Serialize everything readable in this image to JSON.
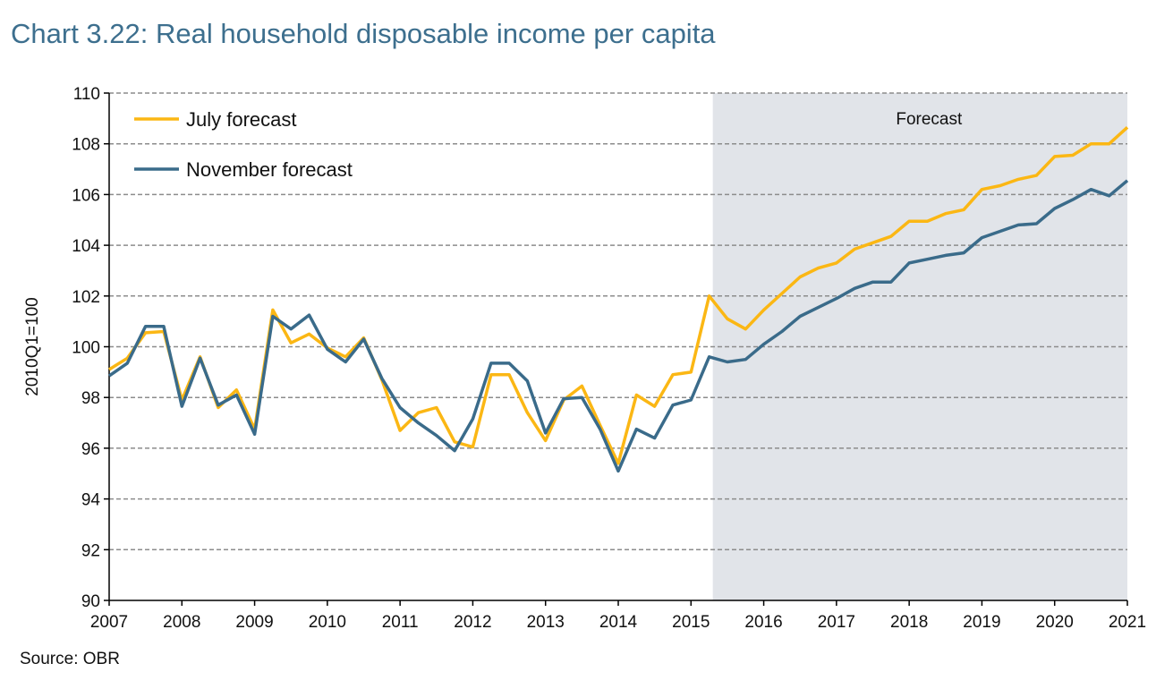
{
  "chart_data": {
    "type": "line",
    "title": "Chart 3.22: Real household disposable income per capita",
    "ylabel": "2010Q1=100",
    "xlabel": "",
    "ylim": [
      90,
      110
    ],
    "yticks": [
      90,
      92,
      94,
      96,
      98,
      100,
      102,
      104,
      106,
      108,
      110
    ],
    "xlim": [
      2007,
      2021
    ],
    "xticks": [
      "2007",
      "2008",
      "2009",
      "2010",
      "2011",
      "2012",
      "2013",
      "2014",
      "2015",
      "2016",
      "2017",
      "2018",
      "2019",
      "2020",
      "2021"
    ],
    "x_start": 2007,
    "x_step": 0.25,
    "grid": true,
    "legend_position": "top-left",
    "forecast_region": {
      "label": "Forecast",
      "start": 2015.3,
      "end": 2021,
      "color": "#e1e4e9"
    },
    "series": [
      {
        "name": "July forecast",
        "color": "#fbb714",
        "values": [
          99.1,
          99.55,
          100.55,
          100.6,
          97.9,
          99.6,
          97.6,
          98.3,
          96.75,
          101.45,
          100.15,
          100.5,
          99.95,
          99.6,
          100.35,
          98.7,
          96.7,
          97.4,
          97.6,
          96.25,
          96.05,
          98.9,
          98.9,
          97.4,
          96.3,
          97.9,
          98.45,
          96.9,
          95.4,
          98.1,
          97.65,
          98.9,
          99.0,
          102.0,
          101.1,
          100.7,
          101.45,
          102.1,
          102.75,
          103.1,
          103.3,
          103.85,
          104.1,
          104.35,
          104.95,
          104.95,
          105.25,
          105.4,
          106.2,
          106.35,
          106.6,
          106.75,
          107.5,
          107.55,
          108.0,
          108.0,
          108.65
        ]
      },
      {
        "name": "November forecast",
        "color": "#3a6b8a",
        "values": [
          98.85,
          99.35,
          100.8,
          100.8,
          97.65,
          99.55,
          97.7,
          98.1,
          96.55,
          101.2,
          100.7,
          101.25,
          99.9,
          99.4,
          100.3,
          98.75,
          97.6,
          97.0,
          96.5,
          95.9,
          97.15,
          99.35,
          99.35,
          98.65,
          96.6,
          97.95,
          98.0,
          96.75,
          95.1,
          96.75,
          96.4,
          97.7,
          97.9,
          99.6,
          99.4,
          99.5,
          100.1,
          100.6,
          101.2,
          101.55,
          101.9,
          102.3,
          102.55,
          102.55,
          103.3,
          103.45,
          103.6,
          103.7,
          104.3,
          104.55,
          104.8,
          104.85,
          105.45,
          105.8,
          106.2,
          105.95,
          106.55
        ]
      }
    ]
  },
  "source": "Source: OBR"
}
